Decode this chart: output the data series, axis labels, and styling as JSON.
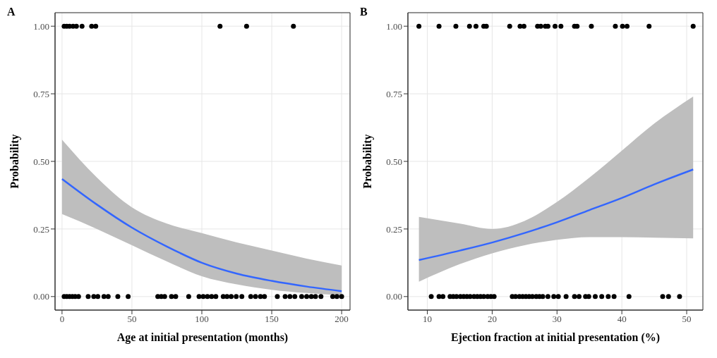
{
  "chart_data": [
    {
      "type": "scatter",
      "title": "A",
      "xlabel": "Age at initial presentation (months)",
      "ylabel": "Probability",
      "xlim": [
        -5,
        206
      ],
      "xticks": [
        0,
        50,
        100,
        150,
        200
      ],
      "ylim": [
        -0.05,
        1.05
      ],
      "yticks": [
        {
          "value": 0,
          "label": "0.00"
        },
        {
          "value": 0.25,
          "label": "0.25"
        },
        {
          "value": 0.5,
          "label": "0.50"
        },
        {
          "value": 0.75,
          "label": "0.75"
        },
        {
          "value": 1,
          "label": "1.00"
        }
      ],
      "grid": true,
      "series": [
        {
          "marker": "circle",
          "color": "#000000",
          "x": [
            1.5,
            3.4,
            5.4,
            7.9,
            10.3,
            14.3,
            21.2,
            23.2,
            24.1,
            113,
            132,
            165.5
          ],
          "values": [
            1,
            1,
            1,
            1,
            1,
            1,
            1,
            null,
            1,
            1,
            1,
            1
          ]
        },
        {
          "marker": "circle",
          "color": "#000000",
          "x": [
            1.5,
            3.4,
            5.4,
            7.4,
            9.4,
            11.8,
            18.7,
            22.7,
            25.6,
            30,
            33,
            39.9,
            47.3,
            68.5,
            71,
            73.4,
            78.3,
            81.3,
            90.6,
            98,
            101,
            104,
            107,
            110,
            115.3,
            118,
            121,
            124.6,
            128.6,
            135,
            138.4,
            141.9,
            144.8,
            154,
            159.6,
            163,
            166.5,
            171.4,
            175,
            178.3,
            181.3,
            185.2,
            193.6,
            196.6,
            200
          ],
          "values": [
            0,
            0,
            0,
            0,
            0,
            0,
            0,
            0,
            0,
            0,
            0,
            0,
            0,
            0,
            0,
            0,
            0,
            0,
            0,
            0,
            0,
            0,
            0,
            0,
            0,
            0,
            0,
            0,
            0,
            0,
            0,
            0,
            0,
            0,
            0,
            0,
            0,
            0,
            0,
            0,
            0,
            0,
            0,
            0,
            0
          ]
        },
        {
          "type": "line",
          "color": "#3366ff",
          "x": [
            0,
            25,
            50,
            75,
            100,
            125,
            150,
            175,
            200
          ],
          "values": [
            0.435,
            0.34,
            0.255,
            0.185,
            0.125,
            0.085,
            0.058,
            0.037,
            0.02
          ],
          "lower": [
            0.305,
            0.25,
            0.19,
            0.13,
            0.075,
            0.045,
            0.025,
            0.013,
            0.005
          ],
          "upper": [
            0.58,
            0.44,
            0.33,
            0.27,
            0.235,
            0.2,
            0.17,
            0.14,
            0.115
          ]
        }
      ]
    },
    {
      "type": "scatter",
      "title": "B",
      "xlabel": "Ejection fraction at initial presentation (%)",
      "ylabel": "Probability",
      "xlim": [
        7,
        52.5
      ],
      "xticks": [
        10,
        20,
        30,
        40,
        50
      ],
      "ylim": [
        -0.05,
        1.05
      ],
      "yticks": [
        {
          "value": 0,
          "label": "0.00"
        },
        {
          "value": 0.25,
          "label": "0.25"
        },
        {
          "value": 0.5,
          "label": "0.50"
        },
        {
          "value": 0.75,
          "label": "0.75"
        },
        {
          "value": 1,
          "label": "1.00"
        }
      ],
      "grid": true,
      "series": [
        {
          "marker": "circle",
          "color": "#000000",
          "x": [
            8.7,
            11.8,
            14.4,
            16.5,
            17.5,
            18.7,
            19.1,
            22.7,
            24.3,
            24.9,
            27,
            27.5,
            28.2,
            28.6,
            29.7,
            30.6,
            32.7,
            33.1,
            35.3,
            39,
            40.1,
            40.8,
            44.2,
            51
          ],
          "values": [
            1,
            1,
            1,
            1,
            1,
            1,
            1,
            1,
            1,
            1,
            1,
            1,
            1,
            1,
            1,
            1,
            1,
            1,
            1,
            1,
            1,
            1,
            1,
            1
          ]
        },
        {
          "marker": "circle",
          "color": "#000000",
          "x": [
            10.6,
            11.8,
            12.4,
            13.5,
            14,
            14.5,
            15.1,
            15.6,
            16.1,
            16.6,
            17.2,
            17.7,
            18.2,
            18.7,
            19.3,
            19.8,
            20.3,
            23.1,
            23.6,
            24.2,
            24.7,
            25.2,
            25.7,
            26.2,
            26.8,
            27.3,
            27.8,
            28.6,
            29.5,
            30.2,
            31.4,
            32.7,
            33.4,
            34.4,
            34.9,
            35.9,
            36.9,
            37.9,
            38.8,
            41.1,
            46.3,
            47.2,
            48.9
          ],
          "values": [
            0,
            0,
            0,
            0,
            0,
            0,
            0,
            0,
            0,
            0,
            0,
            0,
            0,
            0,
            0,
            0,
            0,
            0,
            0,
            0,
            0,
            0,
            0,
            0,
            0,
            0,
            0,
            0,
            0,
            0,
            0,
            0,
            0,
            0,
            0,
            0,
            0,
            0,
            0,
            0,
            0,
            0,
            0
          ]
        },
        {
          "type": "line",
          "color": "#3366ff",
          "x": [
            8.7,
            15,
            20,
            25,
            30,
            35,
            40,
            45,
            51
          ],
          "values": [
            0.135,
            0.17,
            0.2,
            0.235,
            0.275,
            0.32,
            0.365,
            0.415,
            0.47
          ],
          "lower": [
            0.055,
            0.12,
            0.16,
            0.19,
            0.21,
            0.22,
            0.22,
            0.218,
            0.215
          ],
          "upper": [
            0.295,
            0.27,
            0.25,
            0.28,
            0.35,
            0.44,
            0.54,
            0.64,
            0.74
          ]
        }
      ]
    }
  ]
}
